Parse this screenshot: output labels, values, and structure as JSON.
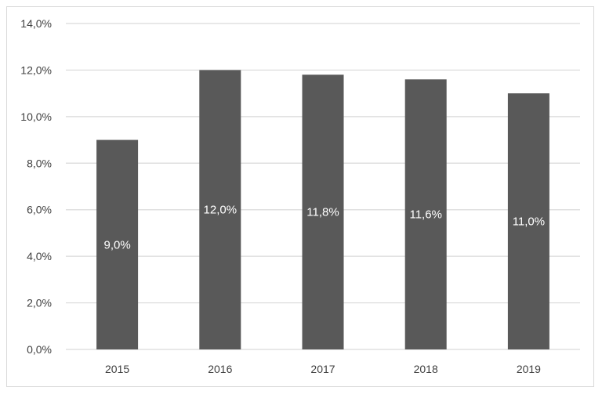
{
  "chart_data": {
    "type": "bar",
    "title": "",
    "xlabel": "",
    "ylabel": "",
    "categories": [
      "2015",
      "2016",
      "2017",
      "2018",
      "2019"
    ],
    "values": [
      9.0,
      12.0,
      11.8,
      11.6,
      11.0
    ],
    "data_labels": [
      "9,0%",
      "12,0%",
      "11,8%",
      "11,6%",
      "11,0%"
    ],
    "ylim": [
      0,
      14
    ],
    "y_ticks": [
      0,
      2,
      4,
      6,
      8,
      10,
      12,
      14
    ],
    "y_tick_labels": [
      "0,0%",
      "2,0%",
      "4,0%",
      "6,0%",
      "8,0%",
      "10,0%",
      "12,0%",
      "14,0%"
    ],
    "grid": true,
    "legend": "none",
    "colors": {
      "bar": "#595959",
      "grid": "#d9d9d9",
      "data_label": "#ffffff",
      "tick_label": "#404040"
    }
  }
}
